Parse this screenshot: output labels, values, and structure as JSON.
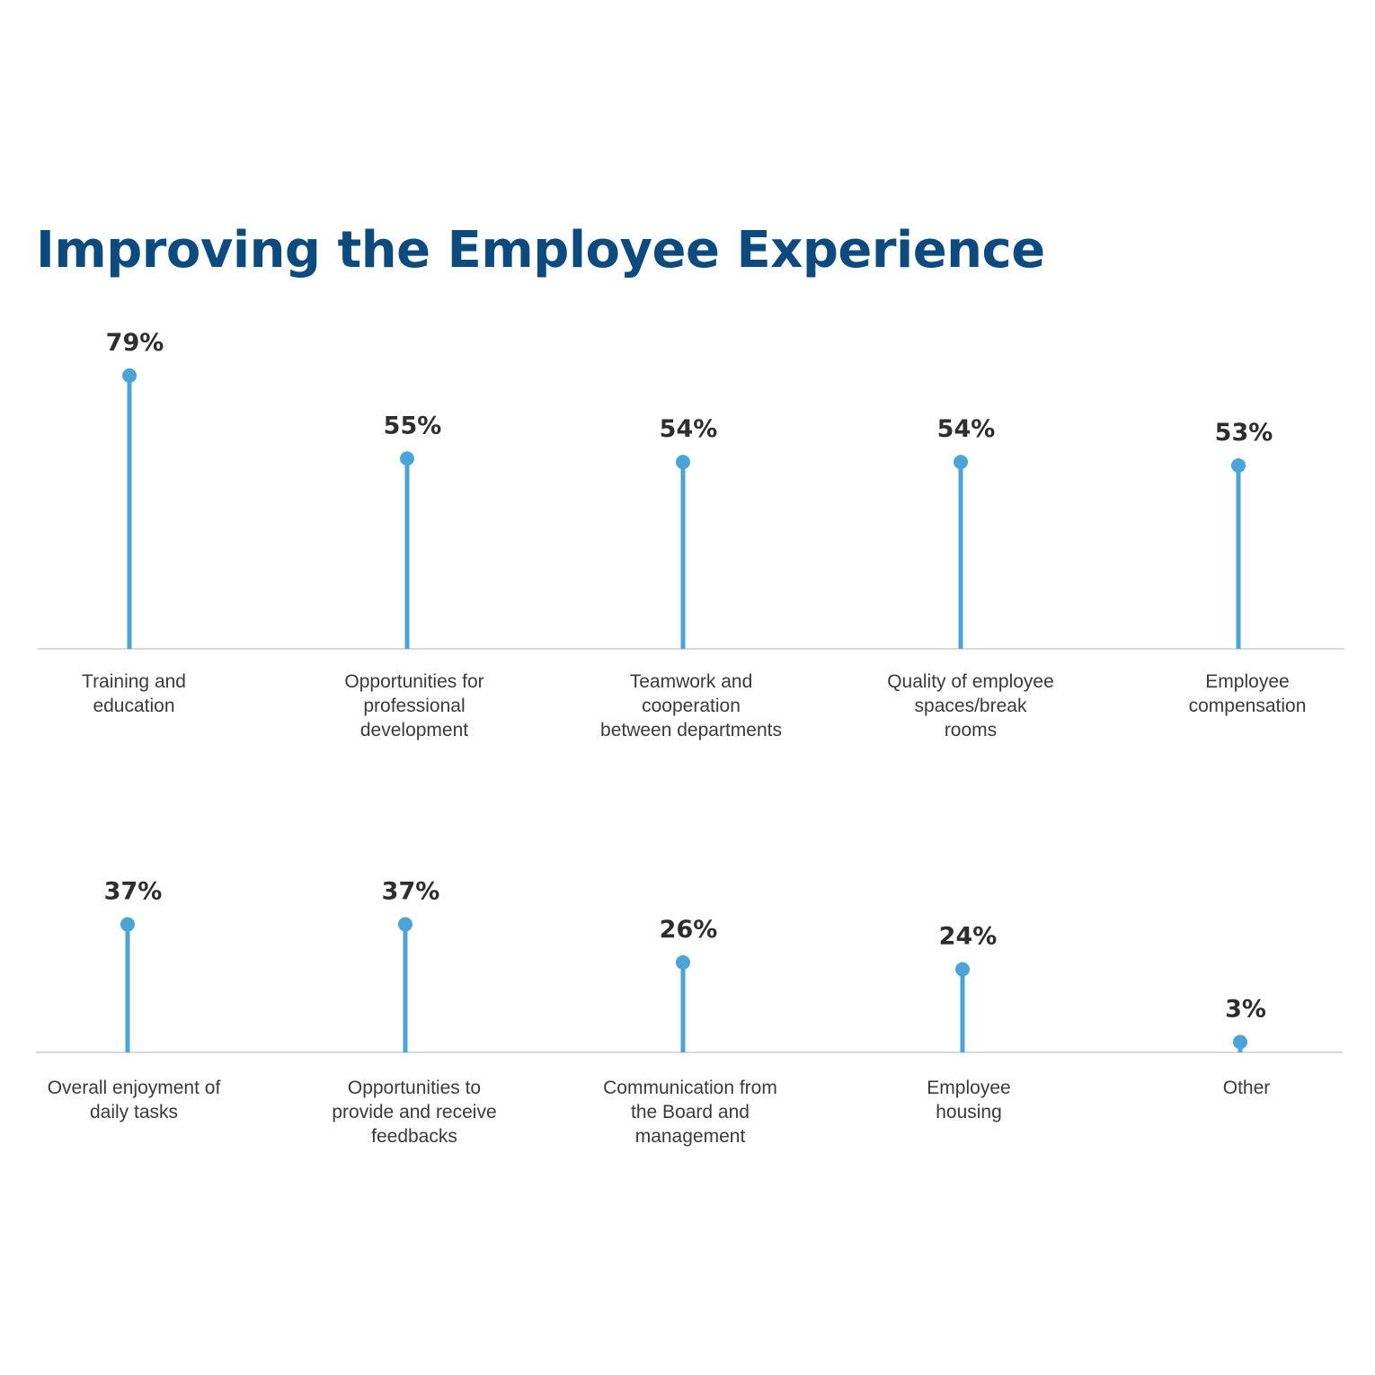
{
  "chart_data": {
    "type": "lollipop",
    "title": "Improving the Employee Experience",
    "color": "#4ba3d6",
    "ylim": [
      0,
      100
    ],
    "rows": [
      {
        "categories": [
          "Training and education",
          "Opportunities for professional development",
          "Teamwork and cooperation between departments",
          "Quality of employee spaces/break rooms",
          "Employee compensation"
        ],
        "labels": [
          [
            "Training and",
            "education"
          ],
          [
            "Opportunities for",
            "professional",
            "development"
          ],
          [
            "Teamwork and",
            "cooperation",
            "between departments"
          ],
          [
            "Quality of employee",
            "spaces/break",
            "rooms"
          ],
          [
            "Employee",
            "compensation"
          ]
        ],
        "values": [
          79,
          55,
          54,
          54,
          53
        ],
        "value_labels": [
          "79%",
          "55%",
          "54%",
          "54%",
          "53%"
        ]
      },
      {
        "categories": [
          "Overall enjoyment of daily tasks",
          "Opportunities to provide and receive feedbacks",
          "Communication from the Board and management",
          "Employee housing",
          "Other"
        ],
        "labels": [
          [
            "Overall enjoyment of",
            "daily tasks"
          ],
          [
            "Opportunities to",
            "provide and receive",
            "feedbacks"
          ],
          [
            "Communication from",
            "the Board and",
            "management"
          ],
          [
            "Employee",
            "housing"
          ],
          [
            "Other"
          ]
        ],
        "values": [
          37,
          37,
          26,
          24,
          3
        ],
        "value_labels": [
          "37%",
          "37%",
          "26%",
          "24%",
          "3%"
        ]
      }
    ]
  }
}
